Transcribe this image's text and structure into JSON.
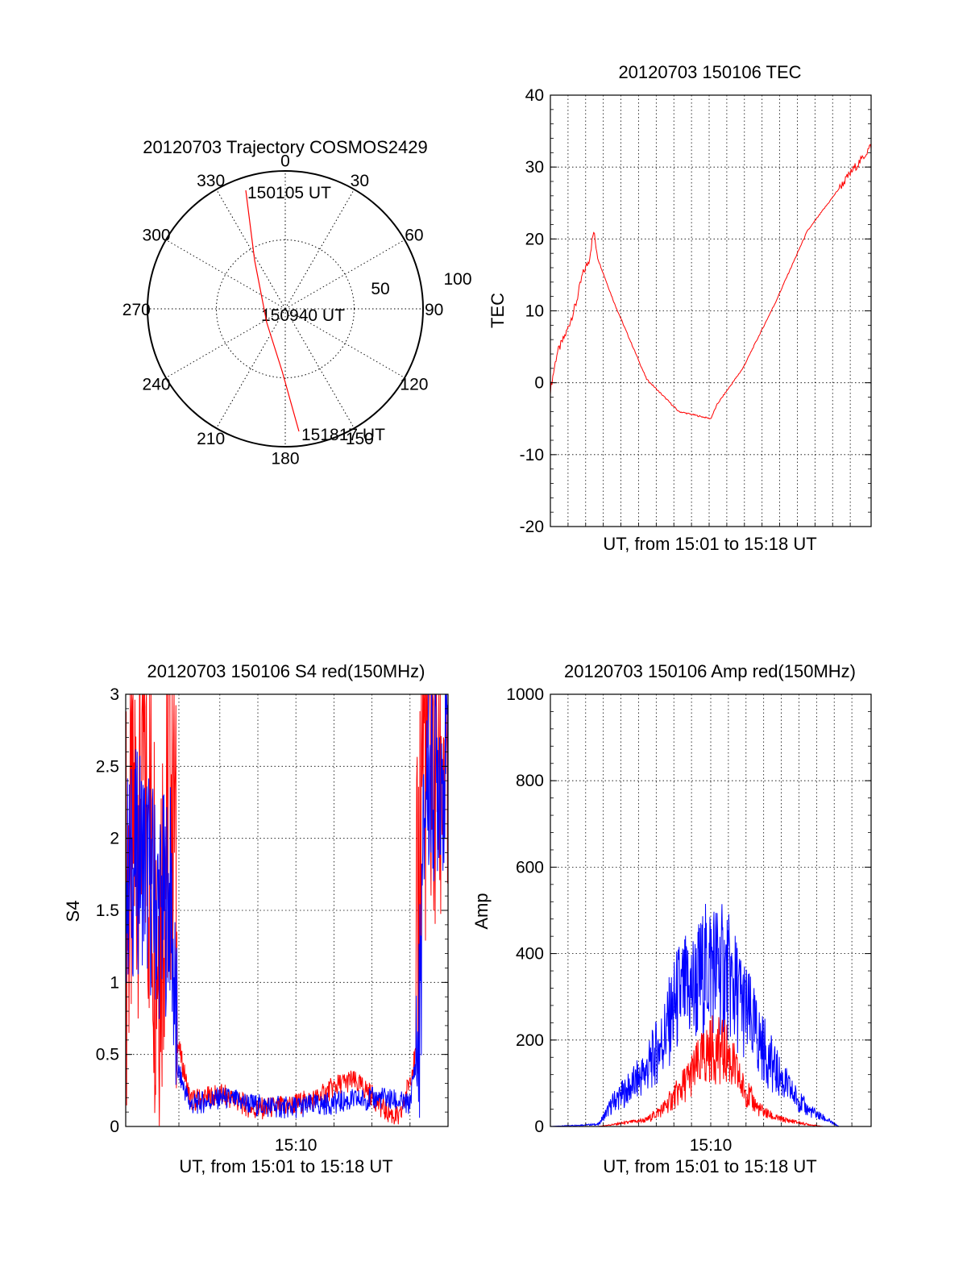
{
  "chart_data": [
    {
      "id": "polar",
      "type": "scatter",
      "title": "20120703 Trajectory COSMOS2429",
      "azimuth_labels": [
        "0",
        "30",
        "60",
        "90",
        "120",
        "150",
        "180",
        "210",
        "240",
        "270",
        "300",
        "330"
      ],
      "azimuth_values": [
        0,
        30,
        60,
        90,
        120,
        150,
        180,
        210,
        240,
        270,
        300,
        330
      ],
      "radial_labels": [
        "50",
        "100"
      ],
      "radial_values": [
        50,
        100
      ],
      "rlim": [
        0,
        100
      ],
      "annotations": [
        "150105 UT",
        "150940 UT",
        "151817 UT"
      ],
      "series": [
        {
          "color": "#ff0000",
          "points": [
            [
              -13,
              86
            ],
            [
              -9,
              50
            ],
            [
              -2,
              4
            ],
            [
              8,
              48
            ],
            [
              13,
              88
            ]
          ]
        }
      ]
    },
    {
      "id": "tec",
      "type": "line",
      "title": "20120703 150106 TEC",
      "xlabel": "UT, from 15:01 to 15:18 UT",
      "ylabel": "TEC",
      "ylim": [
        -20,
        40
      ],
      "yticks": [
        "-20",
        "-10",
        "0",
        "10",
        "20",
        "30",
        "40"
      ],
      "ytick_values": [
        -20,
        -10,
        0,
        10,
        20,
        30,
        40
      ],
      "xlim": [
        0,
        1
      ],
      "xgrid": [
        0.055,
        0.11,
        0.165,
        0.22,
        0.275,
        0.33,
        0.385,
        0.44,
        0.495,
        0.55,
        0.605,
        0.66,
        0.715,
        0.77,
        0.825,
        0.88,
        0.935
      ],
      "grid": true,
      "series": [
        {
          "color": "#ff0000",
          "x": [
            0.0,
            0.02,
            0.05,
            0.08,
            0.1,
            0.12,
            0.135,
            0.15,
            0.2,
            0.3,
            0.4,
            0.5,
            0.52,
            0.6,
            0.7,
            0.8,
            0.9,
            0.95,
            0.97,
            1.0
          ],
          "y": [
            -1,
            4,
            7,
            11,
            15,
            17,
            21,
            17,
            11,
            0.5,
            -4,
            -5,
            -3,
            2,
            11,
            21,
            27,
            30,
            31,
            33
          ]
        }
      ]
    },
    {
      "id": "s4",
      "type": "line",
      "title": "20120703 150106 S4 red(150MHz)",
      "xlabel": "UT, from 15:01 to 15:18 UT",
      "ylabel": "S4",
      "ylim": [
        0,
        3
      ],
      "yticks": [
        "0",
        "0.5",
        "1",
        "1.5",
        "2",
        "2.5",
        "3"
      ],
      "ytick_values": [
        0,
        0.5,
        1,
        1.5,
        2,
        2.5,
        3
      ],
      "xlim": [
        0,
        1
      ],
      "xticks": [
        "15:10"
      ],
      "xtick_values": [
        0.528
      ],
      "xgrid": [
        0.165,
        0.292,
        0.41,
        0.528,
        0.646,
        0.764,
        0.882
      ],
      "grid": true,
      "series": [
        {
          "color": "#ff0000",
          "x": [
            0.0,
            0.05,
            0.1,
            0.15,
            0.16,
            0.2,
            0.3,
            0.4,
            0.5,
            0.6,
            0.65,
            0.7,
            0.75,
            0.8,
            0.85,
            0.9,
            0.92,
            1.0
          ],
          "y": [
            1.5,
            2.6,
            1.4,
            2.7,
            0.6,
            0.18,
            0.22,
            0.12,
            0.14,
            0.2,
            0.28,
            0.32,
            0.25,
            0.12,
            0.05,
            0.5,
            2.8,
            2.5
          ]
        },
        {
          "color": "#0000ff",
          "x": [
            0.0,
            0.05,
            0.1,
            0.14,
            0.16,
            0.2,
            0.3,
            0.4,
            0.5,
            0.6,
            0.7,
            0.8,
            0.88,
            0.91,
            0.93,
            1.0
          ],
          "y": [
            1.7,
            1.9,
            1.5,
            1.6,
            0.4,
            0.15,
            0.2,
            0.15,
            0.13,
            0.15,
            0.18,
            0.2,
            0.15,
            0.6,
            2.4,
            2.6
          ]
        }
      ]
    },
    {
      "id": "amp",
      "type": "line",
      "title": "20120703 150106 Amp red(150MHz)",
      "xlabel": "UT, from 15:01 to 15:18 UT",
      "ylabel": "Amp",
      "ylim": [
        0,
        1000
      ],
      "yticks": [
        "0",
        "200",
        "400",
        "600",
        "800",
        "1000"
      ],
      "ytick_values": [
        0,
        200,
        400,
        600,
        800,
        1000
      ],
      "xlim": [
        0,
        1
      ],
      "xticks": [
        "15:10"
      ],
      "xtick_values": [
        0.5
      ],
      "xgrid": [
        0.055,
        0.11,
        0.165,
        0.22,
        0.275,
        0.33,
        0.385,
        0.44,
        0.5,
        0.555,
        0.61,
        0.665,
        0.72,
        0.775,
        0.83,
        0.885,
        0.94
      ],
      "grid": true,
      "series": [
        {
          "color": "#0000ff",
          "x": [
            0.0,
            0.15,
            0.2,
            0.25,
            0.3,
            0.35,
            0.4,
            0.45,
            0.5,
            0.55,
            0.6,
            0.65,
            0.7,
            0.75,
            0.8,
            0.85,
            0.9,
            1.0
          ],
          "y": [
            0,
            5,
            60,
            90,
            130,
            200,
            300,
            320,
            380,
            350,
            280,
            200,
            130,
            80,
            40,
            20,
            0,
            0
          ]
        },
        {
          "color": "#ff0000",
          "x": [
            0.0,
            0.15,
            0.2,
            0.3,
            0.35,
            0.4,
            0.45,
            0.5,
            0.55,
            0.6,
            0.65,
            0.7,
            0.8,
            0.85,
            1.0
          ],
          "y": [
            0,
            0,
            5,
            15,
            40,
            80,
            130,
            180,
            170,
            90,
            40,
            20,
            5,
            0,
            0
          ]
        }
      ]
    }
  ]
}
